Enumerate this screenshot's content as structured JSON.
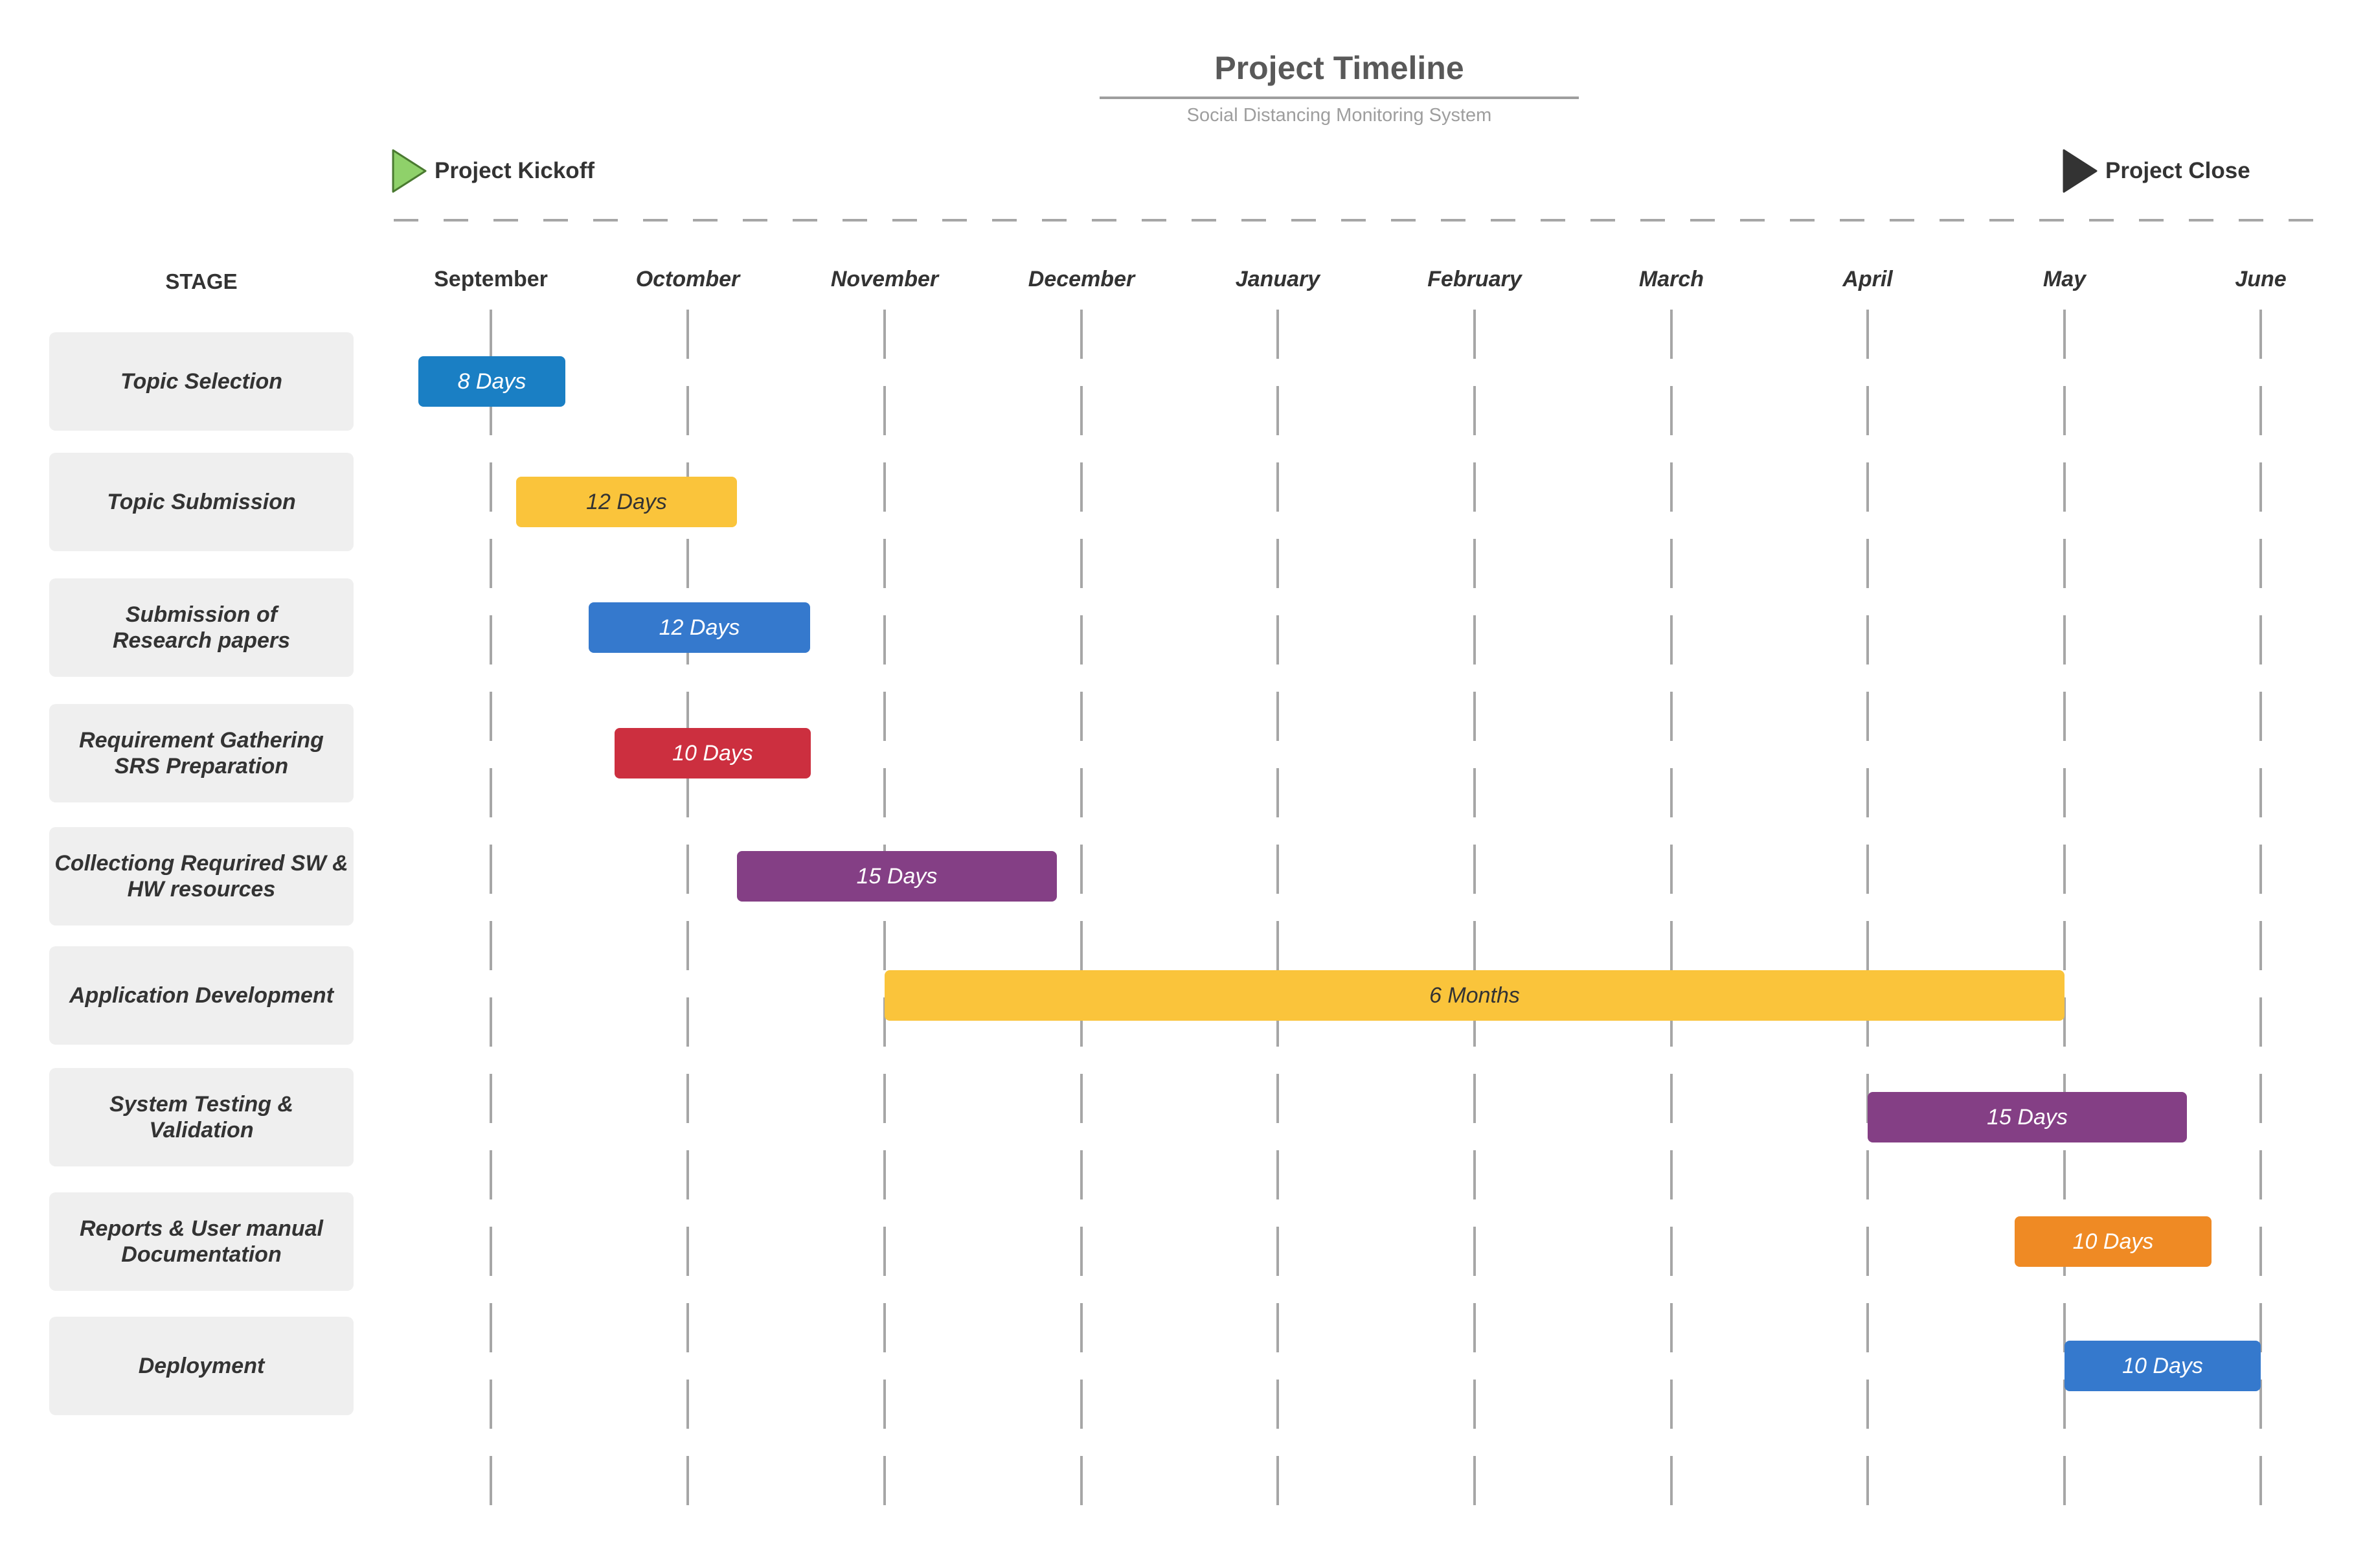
{
  "title": "Project Timeline",
  "subtitle": "Social Distancing Monitoring System",
  "milestones": {
    "start": {
      "label": "Project Kickoff",
      "icon": "play-triangle-icon",
      "color": "#8fd16a"
    },
    "end": {
      "label": "Project Close",
      "icon": "play-triangle-icon",
      "color": "#333333"
    }
  },
  "stage_header": "STAGE",
  "months": [
    "September",
    "Octomber",
    "November",
    "December",
    "January",
    "February",
    "March",
    "April",
    "May",
    "June"
  ],
  "stages": [
    {
      "label": "Topic Selection",
      "duration": "8 Days",
      "color": "#1a7fc4",
      "text_color": "#ffffff"
    },
    {
      "label": "Topic Submission",
      "duration": "12 Days",
      "color": "#fac43b",
      "text_color": "#333333"
    },
    {
      "label": "Submission of\nResearch papers",
      "duration": "12 Days",
      "color": "#3579cd",
      "text_color": "#ffffff"
    },
    {
      "label": "Requirement Gathering\nSRS Preparation",
      "duration": "10 Days",
      "color": "#cc2f3f",
      "text_color": "#ffffff"
    },
    {
      "label": "Collectiong Requrired SW &\nHW resources",
      "duration": "15 Days",
      "color": "#843f85",
      "text_color": "#ffffff"
    },
    {
      "label": "Application Development",
      "duration": "6 Months",
      "color": "#fac43b",
      "text_color": "#333333"
    },
    {
      "label": "System Testing &\nValidation",
      "duration": "15 Days",
      "color": "#843f85",
      "text_color": "#ffffff"
    },
    {
      "label": "Reports & User manual\nDocumentation",
      "duration": "10 Days",
      "color": "#ef8a24",
      "text_color": "#ffffff"
    },
    {
      "label": "Deployment",
      "duration": "10 Days",
      "color": "#3579cd",
      "text_color": "#ffffff"
    }
  ]
}
